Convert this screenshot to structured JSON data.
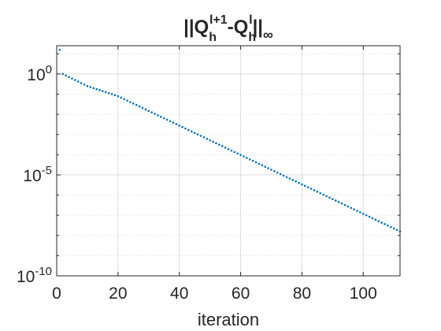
{
  "chart_data": {
    "type": "scatter",
    "title": "||Q_h^{l+1}-Q_h^{l}||_∞",
    "title_parts": {
      "open": "||Q",
      "sub1": "h",
      "sup1": "l+1",
      "mid": "-Q",
      "sub2": "h",
      "sup2": "l",
      "close": "||",
      "norm_sub": "∞"
    },
    "xlabel": "iteration",
    "ylabel": "",
    "xlim": [
      0,
      112
    ],
    "ylim_exponent": [
      -10,
      1.4
    ],
    "yscale": "log",
    "grid": true,
    "x_ticks": [
      "0",
      "20",
      "40",
      "60",
      "80",
      "100"
    ],
    "y_ticks": [
      {
        "base": "10",
        "exp": "0"
      },
      {
        "base": "10",
        "exp": "-5"
      },
      {
        "base": "10",
        "exp": "-10"
      }
    ],
    "series": [
      {
        "color": "#0072bd",
        "marker": "dot",
        "x_start": 1,
        "x_end": 112,
        "log10_points": [
          {
            "x": 1,
            "log10_y": 1.2
          },
          {
            "x": 2,
            "log10_y": 0.0
          },
          {
            "x": 10,
            "log10_y": -0.6
          },
          {
            "x": 20,
            "log10_y": -1.1
          },
          {
            "x": 112,
            "log10_y": -7.8
          }
        ]
      }
    ]
  }
}
